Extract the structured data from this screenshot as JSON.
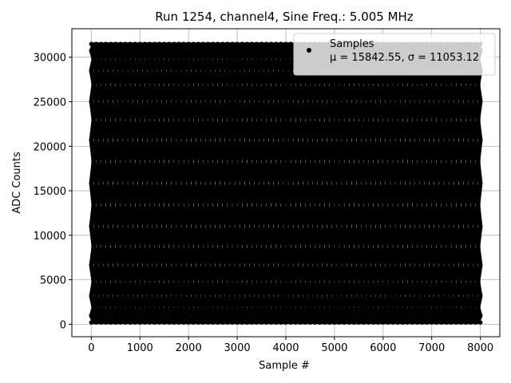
{
  "chart_data": {
    "type": "scatter",
    "title": "Run 1254, channel4, Sine Freq.: 5.005 MHz",
    "xlabel": "Sample #",
    "ylabel": "ADC Counts",
    "xlim": [
      -400,
      8400
    ],
    "ylim": [
      -1400,
      33200
    ],
    "xticks": [
      0,
      1000,
      2000,
      3000,
      4000,
      5000,
      6000,
      7000,
      8000
    ],
    "yticks": [
      0,
      5000,
      10000,
      15000,
      20000,
      25000,
      30000
    ],
    "grid": true,
    "legend": {
      "placement": "top-right",
      "entries": [
        {
          "name": "Samples",
          "stats": "μ = 15842.55, σ = 11053.12"
        }
      ]
    },
    "series": [
      {
        "name": "Samples",
        "color": "#000000",
        "model": {
          "offset": 15842.55,
          "amplitude": 15640,
          "period": 2000,
          "starting_phases_deg": [
            90,
            108,
            126,
            144,
            162,
            180,
            198,
            216,
            234,
            252,
            270,
            288,
            306,
            324,
            342,
            0,
            18,
            36,
            54,
            72
          ],
          "x_range": [
            0,
            8000
          ]
        }
      }
    ]
  }
}
